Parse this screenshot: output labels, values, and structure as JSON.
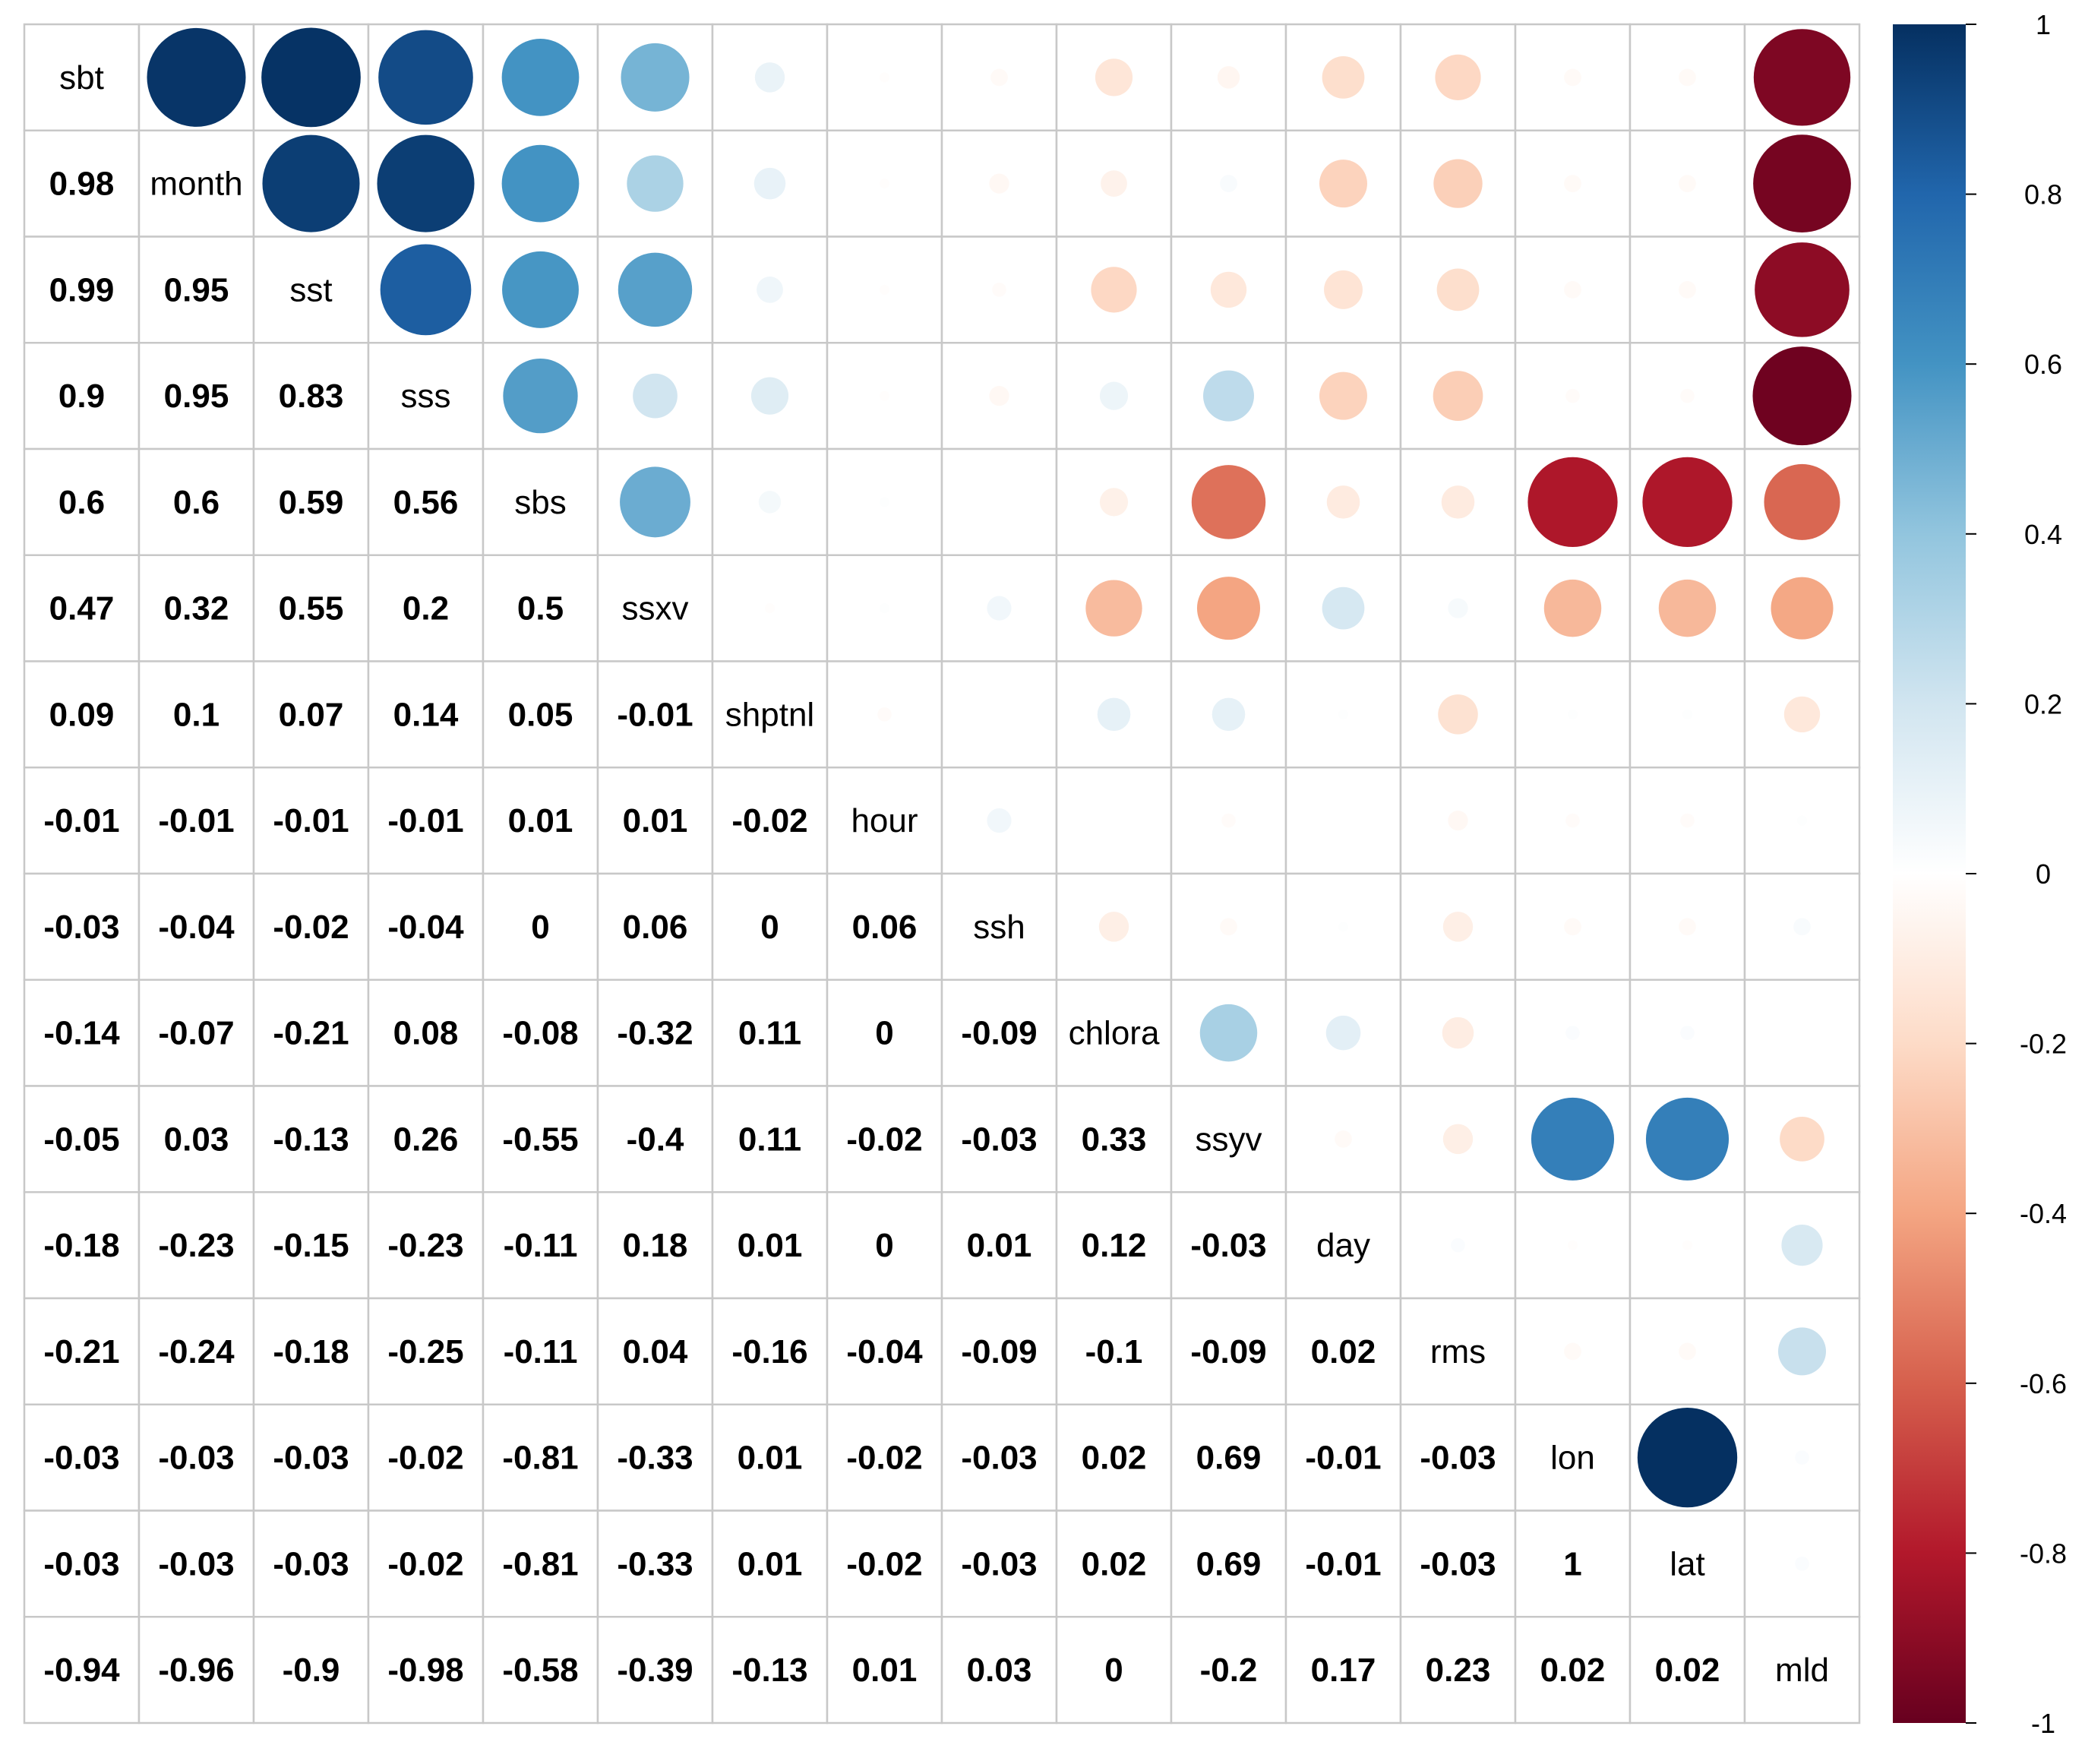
{
  "chart_data": {
    "type": "heatmap",
    "title": "",
    "style": "mixed correlation matrix: circles in upper triangle, numbers in lower triangle, variable names on diagonal",
    "variables": [
      "sbt",
      "month",
      "sst",
      "sss",
      "sbs",
      "ssxv",
      "shptnl",
      "hour",
      "ssh",
      "chlora",
      "ssyv",
      "day",
      "rms",
      "lon",
      "lat",
      "mld"
    ],
    "matrix": [
      [
        1,
        0.98,
        0.99,
        0.9,
        0.6,
        0.47,
        0.09,
        -0.01,
        -0.03,
        -0.14,
        -0.05,
        -0.18,
        -0.21,
        -0.03,
        -0.03,
        -0.94
      ],
      [
        0.98,
        1,
        0.95,
        0.95,
        0.6,
        0.32,
        0.1,
        -0.01,
        -0.04,
        -0.07,
        0.03,
        -0.23,
        -0.24,
        -0.03,
        -0.03,
        -0.96
      ],
      [
        0.99,
        0.95,
        1,
        0.83,
        0.59,
        0.55,
        0.07,
        -0.01,
        -0.02,
        -0.21,
        -0.13,
        -0.15,
        -0.18,
        -0.03,
        -0.03,
        -0.9
      ],
      [
        0.9,
        0.95,
        0.83,
        1,
        0.56,
        0.2,
        0.14,
        -0.01,
        -0.04,
        0.08,
        0.26,
        -0.23,
        -0.25,
        -0.02,
        -0.02,
        -0.98
      ],
      [
        0.6,
        0.6,
        0.59,
        0.56,
        1,
        0.5,
        0.05,
        0.01,
        0,
        -0.08,
        -0.55,
        -0.11,
        -0.11,
        -0.81,
        -0.81,
        -0.58
      ],
      [
        0.47,
        0.32,
        0.55,
        0.2,
        0.5,
        1,
        -0.01,
        0.01,
        0.06,
        -0.32,
        -0.4,
        0.18,
        0.04,
        -0.33,
        -0.33,
        -0.39
      ],
      [
        0.09,
        0.1,
        0.07,
        0.14,
        0.05,
        -0.01,
        1,
        -0.02,
        0,
        0.11,
        0.11,
        0.01,
        -0.16,
        0.01,
        0.01,
        -0.13
      ],
      [
        -0.01,
        -0.01,
        -0.01,
        -0.01,
        0.01,
        0.01,
        -0.02,
        1,
        0.06,
        0,
        -0.02,
        0,
        -0.04,
        -0.02,
        -0.02,
        0.01
      ],
      [
        -0.03,
        -0.04,
        -0.02,
        -0.04,
        0,
        0.06,
        0,
        0.06,
        1,
        -0.09,
        -0.03,
        0.01,
        -0.09,
        -0.03,
        -0.03,
        0.03
      ],
      [
        -0.14,
        -0.07,
        -0.21,
        0.08,
        -0.08,
        -0.32,
        0.11,
        0,
        -0.09,
        1,
        0.33,
        0.12,
        -0.1,
        0.02,
        0.02,
        0
      ],
      [
        -0.05,
        0.03,
        -0.13,
        0.26,
        -0.55,
        -0.4,
        0.11,
        -0.02,
        -0.03,
        0.33,
        1,
        -0.03,
        -0.09,
        0.69,
        0.69,
        -0.2
      ],
      [
        -0.18,
        -0.23,
        -0.15,
        -0.23,
        -0.11,
        0.18,
        0.01,
        0,
        0.01,
        0.12,
        -0.03,
        1,
        0.02,
        -0.01,
        -0.01,
        0.17
      ],
      [
        -0.21,
        -0.24,
        -0.18,
        -0.25,
        -0.11,
        0.04,
        -0.16,
        -0.04,
        -0.09,
        -0.1,
        -0.09,
        0.02,
        1,
        -0.03,
        -0.03,
        0.23
      ],
      [
        -0.03,
        -0.03,
        -0.03,
        -0.02,
        -0.81,
        -0.33,
        0.01,
        -0.02,
        -0.03,
        0.02,
        0.69,
        -0.01,
        -0.03,
        1,
        1,
        0.02
      ],
      [
        -0.03,
        -0.03,
        -0.03,
        -0.02,
        -0.81,
        -0.33,
        0.01,
        -0.02,
        -0.03,
        0.02,
        0.69,
        -0.01,
        -0.03,
        1,
        1,
        0.02
      ],
      [
        -0.94,
        -0.96,
        -0.9,
        -0.98,
        -0.58,
        -0.39,
        -0.13,
        0.01,
        0.03,
        0,
        -0.2,
        0.17,
        0.23,
        0.02,
        0.02,
        1
      ]
    ],
    "colorbar": {
      "range": [
        -1,
        1
      ],
      "ticks": [
        1,
        0.8,
        0.6,
        0.4,
        0.2,
        0,
        -0.2,
        -0.4,
        -0.6,
        -0.8,
        -1
      ],
      "tick_labels": [
        "1",
        "0.8",
        "0.6",
        "0.4",
        "0.2",
        "0",
        "-0.2",
        "-0.4",
        "-0.6",
        "-0.8",
        "-1"
      ],
      "placement": "right",
      "colors": [
        "#67001f",
        "#b2182b",
        "#d6604d",
        "#f4a582",
        "#fddbc7",
        "#ffffff",
        "#d1e5f0",
        "#92c5de",
        "#4393c3",
        "#2166ac",
        "#053061"
      ]
    }
  }
}
